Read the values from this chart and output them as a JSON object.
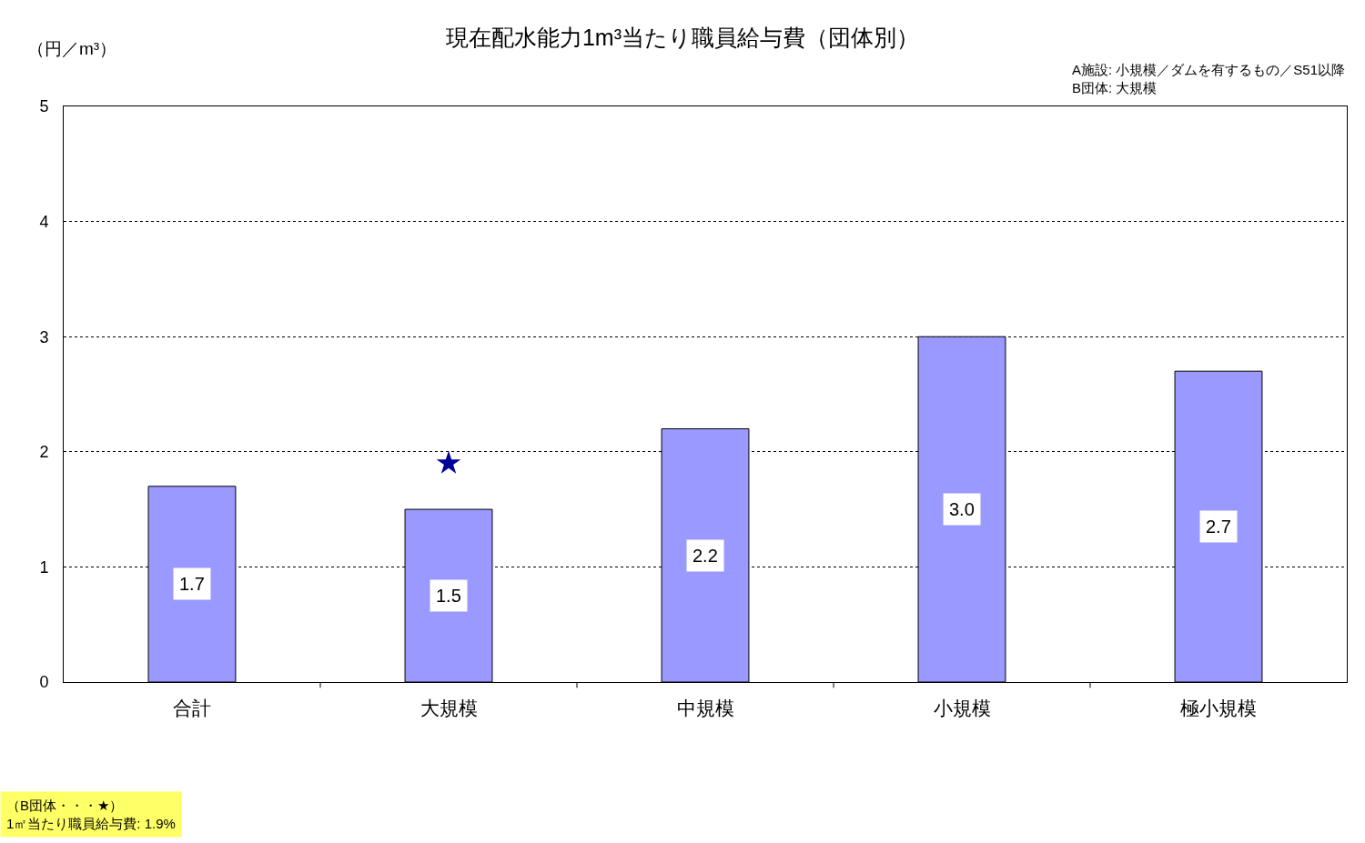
{
  "chart_data": {
    "type": "bar",
    "title": "現在配水能力1m³当たり職員給与費（団体別）",
    "ylabel": "（円／m³）",
    "annotations": [
      "A施設: 小規模／ダムを有するもの／S51以降\nB団体: 大規模",
      "（B団体・・・★）\n1㎡当たり職員給与費: 1.9%"
    ],
    "categories": [
      "合計",
      "大規模",
      "中規模",
      "小規模",
      "極小規模"
    ],
    "series": [
      {
        "color": "#9999ff",
        "values": [
          1.7,
          1.5,
          2.2,
          3.0,
          2.7
        ],
        "value_labels": [
          "1.7",
          "1.5",
          "2.2",
          "3.0",
          "2.7"
        ]
      },
      {
        "type": "scatter",
        "color": "#000099",
        "marker": "star",
        "x": [
          "大規模"
        ],
        "values": [
          1.9
        ]
      }
    ],
    "ylim": [
      0,
      5
    ],
    "yticks": [
      0,
      1,
      2,
      3,
      4,
      5
    ],
    "grid": "y"
  }
}
